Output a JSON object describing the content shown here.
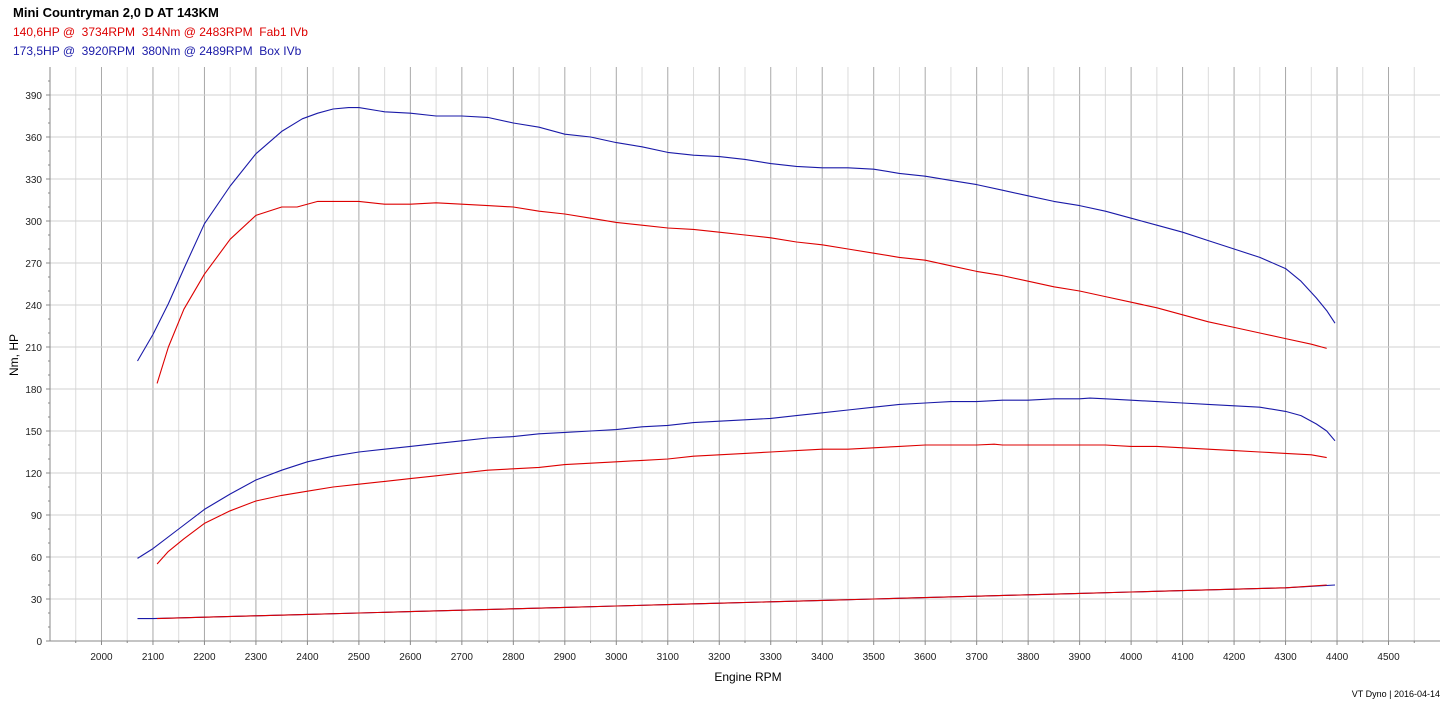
{
  "header": {
    "title": "Mini Countryman 2,0 D AT 143KM",
    "legend": [
      {
        "text": "140,6HP @  3734RPM  314Nm @ 2483RPM  Fab1 IVb",
        "color": "#dd0000"
      },
      {
        "text": "173,5HP @  3920RPM  380Nm @ 2489RPM  Box IVb",
        "color": "#1a1aa8"
      }
    ]
  },
  "footer": "VT Dyno | 2016-04-14",
  "chart_data": {
    "type": "line",
    "xlabel": "Engine RPM",
    "ylabel": "Nm, HP",
    "xlim": [
      1900,
      4600
    ],
    "ylim": [
      0,
      410
    ],
    "xticks": [
      2000,
      2100,
      2200,
      2300,
      2400,
      2500,
      2600,
      2700,
      2800,
      2900,
      3000,
      3100,
      3200,
      3300,
      3400,
      3500,
      3600,
      3700,
      3800,
      3900,
      4000,
      4100,
      4200,
      4300,
      4400,
      4500
    ],
    "yticks": [
      0,
      30,
      60,
      90,
      120,
      150,
      180,
      210,
      240,
      270,
      300,
      330,
      360,
      390
    ],
    "grid": true,
    "series": [
      {
        "name": "Box IVb",
        "kind": "torque",
        "color": "#1a1aa8",
        "x": [
          2070,
          2100,
          2130,
          2160,
          2200,
          2250,
          2300,
          2350,
          2390,
          2420,
          2450,
          2480,
          2500,
          2550,
          2600,
          2650,
          2700,
          2750,
          2800,
          2850,
          2900,
          2950,
          3000,
          3050,
          3100,
          3150,
          3200,
          3250,
          3300,
          3350,
          3400,
          3450,
          3500,
          3550,
          3600,
          3650,
          3700,
          3750,
          3800,
          3850,
          3900,
          3950,
          4000,
          4050,
          4100,
          4150,
          4200,
          4250,
          4300,
          4330,
          4360,
          4380,
          4396
        ],
        "y": [
          200,
          219,
          241,
          266,
          298,
          325,
          348,
          364,
          373,
          377,
          380,
          381,
          381,
          378,
          377,
          375,
          375,
          374,
          370,
          367,
          362,
          360,
          356,
          353,
          349,
          347,
          346,
          344,
          341,
          339,
          338,
          338,
          337,
          334,
          332,
          329,
          326,
          322,
          318,
          314,
          311,
          307,
          302,
          297,
          292,
          286,
          280,
          274,
          266,
          257,
          245,
          236,
          227
        ]
      },
      {
        "name": "Fab1 IVb",
        "kind": "torque",
        "color": "#dd0000",
        "x": [
          2108,
          2130,
          2160,
          2200,
          2250,
          2300,
          2350,
          2380,
          2420,
          2450,
          2483,
          2500,
          2550,
          2600,
          2650,
          2700,
          2750,
          2800,
          2850,
          2900,
          2950,
          3000,
          3050,
          3100,
          3150,
          3200,
          3250,
          3300,
          3350,
          3400,
          3450,
          3500,
          3550,
          3600,
          3650,
          3700,
          3750,
          3800,
          3850,
          3900,
          3950,
          4000,
          4050,
          4100,
          4150,
          4200,
          4250,
          4300,
          4350,
          4380
        ],
        "y": [
          184,
          210,
          237,
          262,
          287,
          304,
          310,
          310,
          314,
          314,
          314,
          314,
          312,
          312,
          313,
          312,
          311,
          310,
          307,
          305,
          302,
          299,
          297,
          295,
          294,
          292,
          290,
          288,
          285,
          283,
          280,
          277,
          274,
          272,
          268,
          264,
          261,
          257,
          253,
          250,
          246,
          242,
          238,
          233,
          228,
          224,
          220,
          216,
          212,
          209
        ]
      },
      {
        "name": "Box IVb",
        "kind": "power",
        "color": "#1a1aa8",
        "x": [
          2070,
          2100,
          2150,
          2200,
          2250,
          2300,
          2350,
          2400,
          2450,
          2500,
          2550,
          2600,
          2650,
          2700,
          2750,
          2800,
          2850,
          2900,
          2950,
          3000,
          3050,
          3100,
          3150,
          3200,
          3250,
          3300,
          3350,
          3400,
          3450,
          3500,
          3550,
          3600,
          3650,
          3700,
          3750,
          3800,
          3850,
          3900,
          3920,
          3950,
          4000,
          4050,
          4100,
          4150,
          4200,
          4250,
          4300,
          4330,
          4360,
          4380,
          4396
        ],
        "y": [
          59,
          66,
          80,
          94,
          105,
          115,
          122,
          128,
          132,
          135,
          137,
          139,
          141,
          143,
          145,
          146,
          148,
          149,
          150,
          151,
          153,
          154,
          156,
          157,
          158,
          159,
          161,
          163,
          165,
          167,
          169,
          170,
          171,
          171,
          172,
          172,
          173,
          173,
          173.5,
          173,
          172,
          171,
          170,
          169,
          168,
          167,
          164,
          161,
          155,
          150,
          143
        ]
      },
      {
        "name": "Fab1 IVb",
        "kind": "power",
        "color": "#dd0000",
        "x": [
          2108,
          2130,
          2160,
          2200,
          2250,
          2300,
          2350,
          2400,
          2450,
          2500,
          2550,
          2600,
          2650,
          2700,
          2750,
          2800,
          2850,
          2900,
          2950,
          3000,
          3050,
          3100,
          3150,
          3200,
          3250,
          3300,
          3350,
          3400,
          3450,
          3500,
          3550,
          3600,
          3650,
          3700,
          3734,
          3750,
          3800,
          3850,
          3900,
          3950,
          4000,
          4050,
          4100,
          4150,
          4200,
          4250,
          4300,
          4350,
          4380
        ],
        "y": [
          55,
          64,
          73,
          84,
          93,
          100,
          104,
          107,
          110,
          112,
          114,
          116,
          118,
          120,
          122,
          123,
          124,
          126,
          127,
          128,
          129,
          130,
          132,
          133,
          134,
          135,
          136,
          137,
          137,
          138,
          139,
          140,
          140,
          140,
          140.6,
          140,
          140,
          140,
          140,
          140,
          139,
          139,
          138,
          137,
          136,
          135,
          134,
          133,
          131
        ]
      },
      {
        "name": "Box IVb",
        "kind": "loss",
        "color": "#1a1aa8",
        "x": [
          2070,
          2100,
          2200,
          2300,
          2400,
          2500,
          2600,
          2700,
          2800,
          2900,
          3000,
          3100,
          3200,
          3300,
          3400,
          3500,
          3600,
          3700,
          3800,
          3900,
          4000,
          4100,
          4200,
          4300,
          4396
        ],
        "y": [
          16,
          16,
          17,
          18,
          19,
          20,
          21,
          22,
          23,
          24,
          25,
          26,
          27,
          28,
          29,
          30,
          31,
          32,
          33,
          34,
          35,
          36,
          37,
          38,
          40
        ]
      },
      {
        "name": "Fab1 IVb",
        "kind": "loss",
        "color": "#dd0000",
        "x": [
          2108,
          2200,
          2300,
          2400,
          2500,
          2600,
          2700,
          2800,
          2900,
          3000,
          3100,
          3200,
          3300,
          3400,
          3500,
          3600,
          3700,
          3800,
          3900,
          4000,
          4100,
          4200,
          4300,
          4380
        ],
        "y": [
          16,
          17,
          18,
          19,
          20,
          21,
          22,
          23,
          24,
          25,
          26,
          27,
          28,
          29,
          30,
          31,
          32,
          33,
          34,
          35,
          36,
          37,
          38,
          40
        ]
      }
    ]
  }
}
